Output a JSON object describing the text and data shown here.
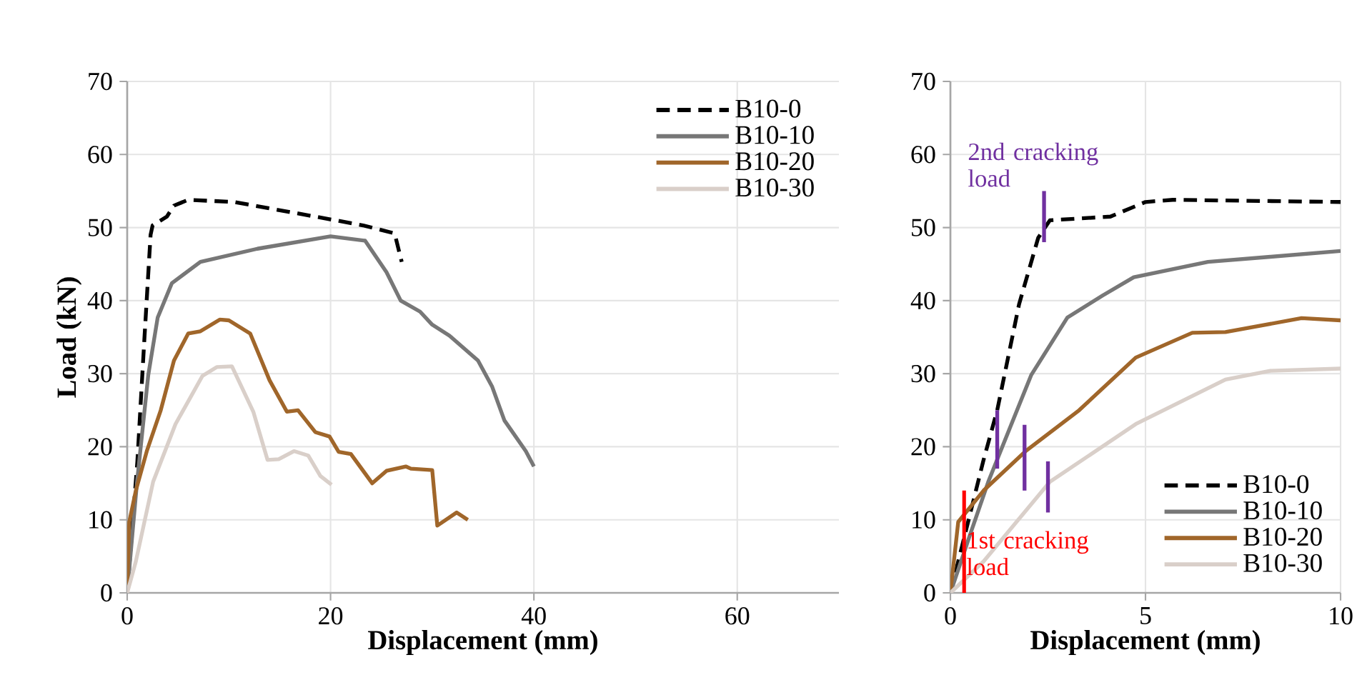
{
  "chart_data": [
    {
      "type": "line",
      "xlabel": "Displacement (mm)",
      "ylabel": "Load (kN)",
      "xlim": [
        0,
        70
      ],
      "ylim": [
        0,
        70
      ],
      "xticks": [
        0,
        20,
        40,
        60
      ],
      "yticks": [
        0,
        10,
        20,
        30,
        40,
        50,
        60,
        70
      ],
      "grid": true,
      "legend": "top right",
      "series": [
        {
          "name": "B10-0",
          "color": "#000000",
          "line_style": "dashed",
          "x": [
            0,
            1,
            1.7,
            2.3,
            2.5,
            3.9,
            4.6,
            6,
            10.5,
            18.5,
            23.2,
            26.3,
            27
          ],
          "values": [
            0,
            18,
            35,
            49,
            50.3,
            51.5,
            53,
            53.8,
            53.5,
            51.5,
            50.3,
            49.2,
            45.3
          ]
        },
        {
          "name": "B10-10",
          "color": "#777777",
          "x": [
            0,
            0.5,
            0.97,
            1.52,
            2.07,
            3,
            4.4,
            7.2,
            12.8,
            20,
            23.4,
            25.5,
            26.9,
            28.8,
            30,
            31.7,
            34.5,
            35.9,
            37.1,
            39.2,
            40
          ],
          "values": [
            0,
            7.9,
            15.2,
            22.5,
            29.8,
            37.7,
            42.4,
            45.3,
            47.1,
            48.8,
            48.2,
            43.9,
            40,
            38.5,
            36.7,
            35.2,
            31.8,
            28.2,
            23.6,
            19.4,
            17.3
          ]
        },
        {
          "name": "B10-20",
          "color": "#a0662a",
          "x": [
            0,
            0.2,
            0.85,
            1.95,
            3.3,
            4.6,
            6,
            7.2,
            9.1,
            10,
            12.1,
            14,
            15.7,
            16.8,
            18.5,
            19.9,
            20.8,
            22,
            24.1,
            25.5,
            27.4,
            27.9,
            30,
            30.5,
            32.4,
            33.5
          ],
          "values": [
            0,
            9.7,
            14,
            19.5,
            25,
            31.8,
            35.5,
            35.8,
            37.4,
            37.3,
            35.5,
            29.1,
            24.8,
            25,
            22,
            21.4,
            19.3,
            19,
            15,
            16.7,
            17.3,
            17,
            16.8,
            9.2,
            11,
            10
          ]
        },
        {
          "name": "B10-30",
          "color": "#d9cfc9",
          "x": [
            0,
            0.85,
            2.55,
            4.75,
            7.4,
            8.8,
            10.3,
            12.4,
            13.8,
            14.9,
            16.4,
            17.8,
            19,
            20.1
          ],
          "values": [
            0,
            4.3,
            15.2,
            23.1,
            29.7,
            30.9,
            31,
            24.8,
            18.2,
            18.3,
            19.4,
            18.8,
            16,
            14.8
          ]
        }
      ]
    },
    {
      "type": "line",
      "xlabel": "Displacement (mm)",
      "xlim": [
        0,
        10
      ],
      "ylim": [
        0,
        70
      ],
      "xticks": [
        0,
        5,
        10
      ],
      "yticks": [
        0,
        10,
        20,
        30,
        40,
        50,
        60,
        70
      ],
      "grid": true,
      "legend": "bottom right",
      "annotations": [
        {
          "text": "2nd cracking load",
          "x": 2.4,
          "y": 55
        },
        {
          "text": "1st cracking load",
          "x": 0.35,
          "y": 8.5
        }
      ],
      "series": [
        {
          "name": "B10-0",
          "color": "#000000",
          "line_style": "dashed",
          "x": [
            0,
            0.85,
            1.2,
            1.76,
            2.25,
            2.55,
            4.1,
            5,
            5.7,
            10
          ],
          "values": [
            0,
            18.2,
            25,
            39.5,
            48.6,
            51,
            51.5,
            53.5,
            53.8,
            53.5
          ]
        },
        {
          "name": "B10-10",
          "color": "#777777",
          "x": [
            0,
            0.5,
            0.97,
            1.52,
            2.07,
            3,
            3.9,
            4.7,
            6.6,
            8.2,
            10
          ],
          "values": [
            0,
            7.9,
            15.2,
            22.5,
            29.8,
            37.7,
            40.7,
            43.2,
            45.3,
            46,
            46.8
          ]
        },
        {
          "name": "B10-20",
          "color": "#a0662a",
          "x": [
            0,
            0.2,
            0.85,
            1.95,
            3.3,
            4.75,
            6.2,
            7.05,
            9,
            10
          ],
          "values": [
            0,
            9.7,
            14,
            19.5,
            25,
            32.2,
            35.6,
            35.7,
            37.6,
            37.3
          ]
        },
        {
          "name": "B10-30",
          "color": "#d9cfc9",
          "x": [
            0,
            0.85,
            2.55,
            4.75,
            7.05,
            8.2,
            10
          ],
          "values": [
            0,
            4.3,
            15.2,
            23.1,
            29.2,
            30.4,
            30.7
          ]
        },
        {
          "color": "#ff0000",
          "x": [
            0.35,
            0.35
          ],
          "values": [
            0,
            14
          ]
        },
        {
          "color": "#7030a0",
          "x": [
            2.4,
            2.4
          ],
          "values": [
            48,
            55
          ]
        },
        {
          "color": "#7030a0",
          "x": [
            1.2,
            1.2
          ],
          "values": [
            17,
            25
          ]
        },
        {
          "color": "#7030a0",
          "x": [
            1.9,
            1.9
          ],
          "values": [
            14,
            23
          ]
        },
        {
          "color": "#7030a0",
          "x": [
            2.5,
            2.5
          ],
          "values": [
            11,
            18
          ]
        }
      ]
    }
  ]
}
